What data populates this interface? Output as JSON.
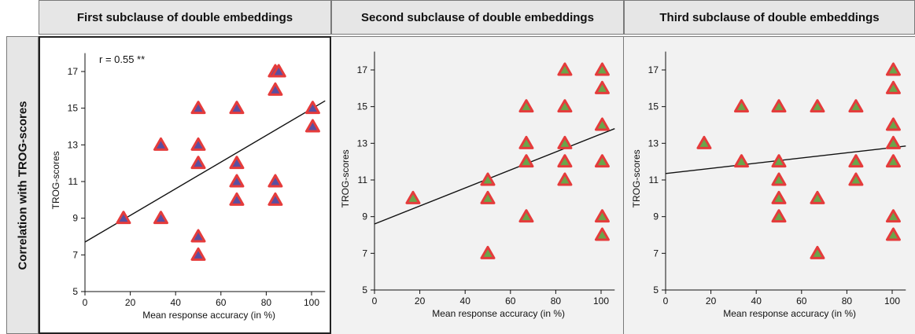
{
  "row_header": "Correlation with TROG-scores",
  "colors": {
    "marker_fill_1": "#5a4fa0",
    "marker_fill_other": "#6aa54a",
    "marker_edge": "#e53b3b",
    "fit_line": "#111111"
  },
  "chart_data": [
    {
      "type": "scatter",
      "title": "First subclause of double embeddings",
      "xlabel": "Mean response accuracy (in %)",
      "ylabel": "TROG-scores",
      "xlim": [
        0,
        106
      ],
      "ylim": [
        5,
        18
      ],
      "xticks": [
        0,
        20,
        40,
        60,
        80,
        100
      ],
      "yticks": [
        5,
        7,
        9,
        11,
        13,
        15,
        17
      ],
      "annotation": "r = 0.55 **",
      "x": [
        17,
        33.5,
        33.5,
        50,
        50,
        50,
        50,
        50,
        67,
        67,
        67,
        67,
        84,
        84,
        84,
        84,
        85.5,
        100.5,
        100.5
      ],
      "y": [
        9,
        9,
        13,
        7,
        8,
        12,
        13,
        15,
        10,
        11,
        12,
        15,
        10,
        11,
        16,
        17,
        17,
        14,
        15
      ],
      "fit": {
        "x": [
          0,
          106
        ],
        "y": [
          7.7,
          15.4
        ]
      }
    },
    {
      "type": "scatter",
      "title": "Second subclause of double embeddings",
      "xlabel": "Mean response accuracy (in %)",
      "ylabel": "TROG-scores",
      "xlim": [
        0,
        106
      ],
      "ylim": [
        5,
        18
      ],
      "xticks": [
        0,
        20,
        40,
        60,
        80,
        100
      ],
      "yticks": [
        5,
        7,
        9,
        11,
        13,
        15,
        17
      ],
      "x": [
        17,
        50,
        50,
        50,
        67,
        67,
        67,
        67,
        84,
        84,
        84,
        84,
        84,
        100.5,
        100.5,
        100.5,
        100.5,
        100.5,
        100.5
      ],
      "y": [
        10,
        7,
        10,
        11,
        9,
        12,
        13,
        15,
        11,
        12,
        13,
        15,
        17,
        8,
        9,
        12,
        14,
        16,
        17
      ],
      "fit": {
        "x": [
          0,
          106
        ],
        "y": [
          8.6,
          13.8
        ]
      }
    },
    {
      "type": "scatter",
      "title": "Third subclause of double embeddings",
      "xlabel": "Mean response accuracy (in %)",
      "ylabel": "TROG-scores",
      "xlim": [
        0,
        106
      ],
      "ylim": [
        5,
        18
      ],
      "xticks": [
        0,
        20,
        40,
        60,
        80,
        100
      ],
      "yticks": [
        5,
        7,
        9,
        11,
        13,
        15,
        17
      ],
      "x": [
        17,
        33.5,
        33.5,
        50,
        50,
        50,
        50,
        50,
        67,
        67,
        67,
        84,
        84,
        84,
        100.5,
        100.5,
        100.5,
        100.5,
        100.5,
        100.5,
        100.5
      ],
      "y": [
        13,
        12,
        15,
        9,
        10,
        11,
        12,
        15,
        7,
        10,
        15,
        11,
        12,
        15,
        8,
        9,
        12,
        13,
        14,
        16,
        17
      ],
      "fit": {
        "x": [
          0,
          106
        ],
        "y": [
          11.35,
          12.85
        ]
      }
    }
  ]
}
